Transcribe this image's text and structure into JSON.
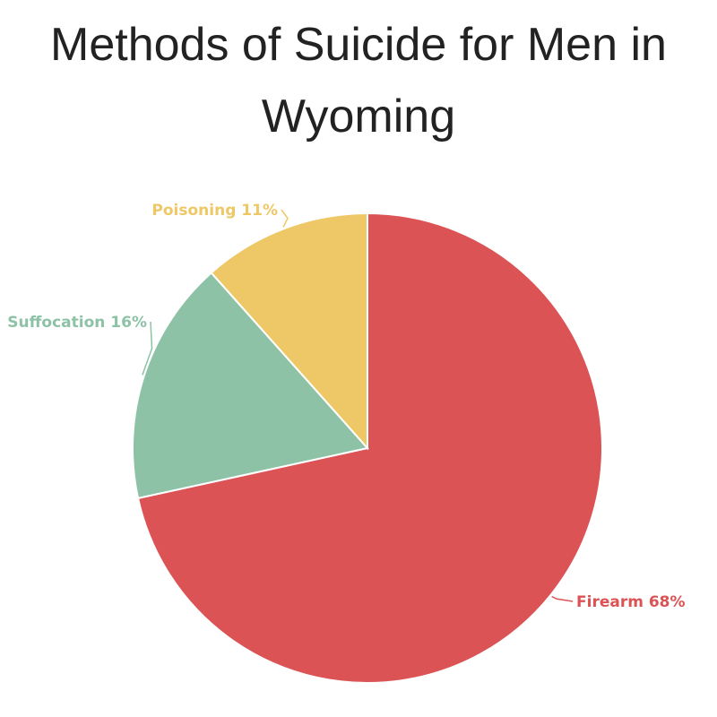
{
  "chart_data": {
    "type": "pie",
    "title": "Methods of Suicide for Men in Wyoming",
    "slices": [
      {
        "label": "Firearm 68%",
        "value": 68,
        "color": "#db5355"
      },
      {
        "label": "Suffocation 16%",
        "value": 16,
        "color": "#8dc2a6"
      },
      {
        "label": "Poisoning 11%",
        "value": 11,
        "color": "#eec866"
      }
    ],
    "start": "12 o'clock",
    "direction": "clockwise"
  }
}
